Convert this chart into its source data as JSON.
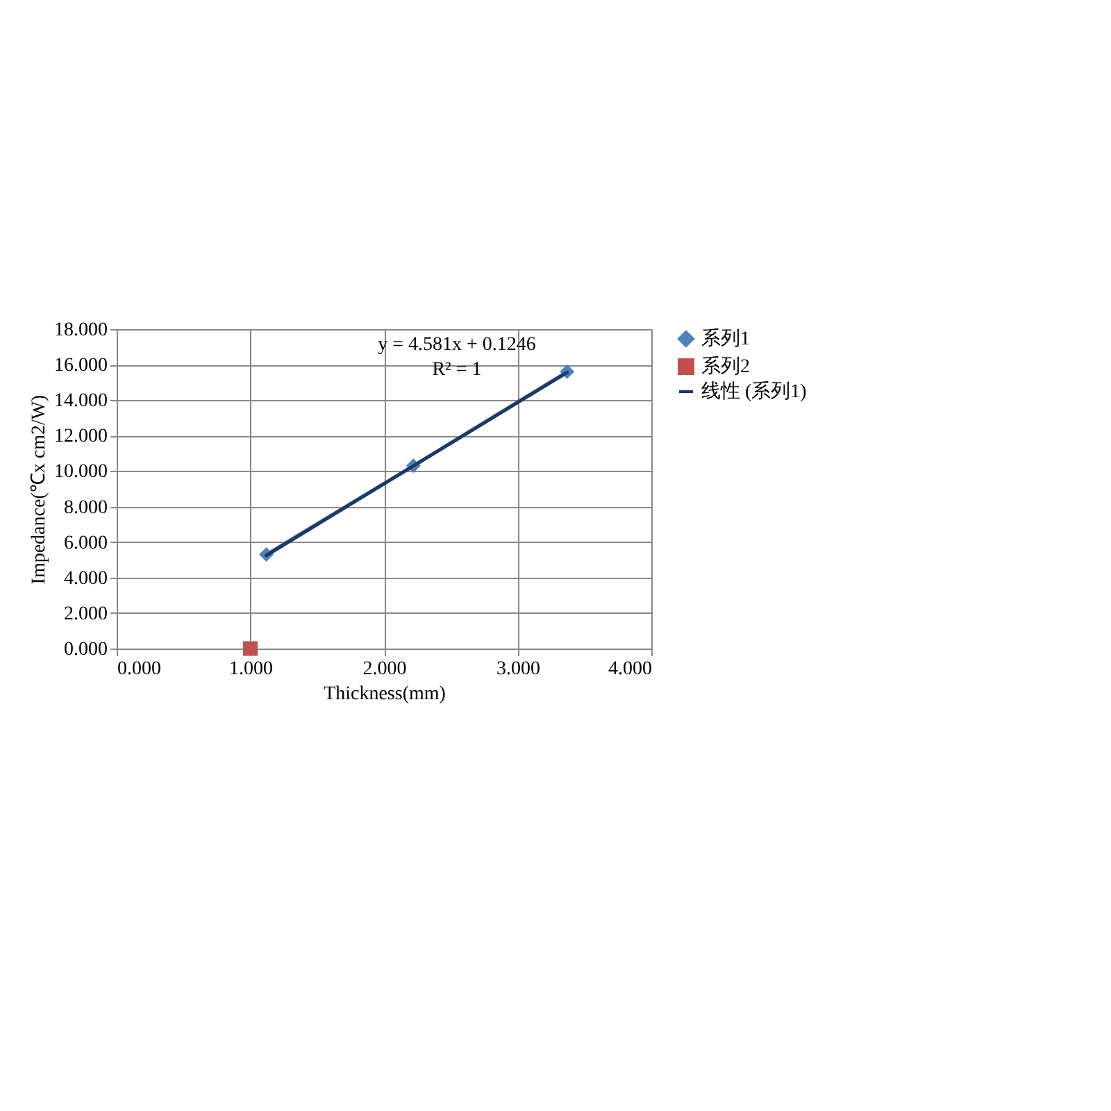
{
  "chart_data": {
    "type": "line",
    "xlabel": "Thickness(mm)",
    "ylabel": "Impedance(℃x cm2/W)",
    "xlim": [
      0,
      4
    ],
    "xticks": [
      {
        "value": 0,
        "label": "0.000"
      },
      {
        "value": 1,
        "label": "1.000"
      },
      {
        "value": 2,
        "label": "2.000"
      },
      {
        "value": 3,
        "label": "3.000"
      },
      {
        "value": 4,
        "label": "4.000"
      }
    ],
    "ylim": [
      0,
      18
    ],
    "yticks": [
      {
        "value": 0,
        "label": "0.000"
      },
      {
        "value": 2,
        "label": "2.000"
      },
      {
        "value": 4,
        "label": "4.000"
      },
      {
        "value": 6,
        "label": "6.000"
      },
      {
        "value": 8,
        "label": "8.000"
      },
      {
        "value": 10,
        "label": "10.000"
      },
      {
        "value": 12,
        "label": "12.000"
      },
      {
        "value": 14,
        "label": "14.000"
      },
      {
        "value": 16,
        "label": "16.000"
      },
      {
        "value": 18,
        "label": "18.000"
      }
    ],
    "grid": true,
    "legend": "right",
    "series": [
      {
        "name": "系列1",
        "marker": "diamond",
        "color": "#4f81bd",
        "x": [
          1.12,
          2.22,
          3.37
        ],
        "values": [
          5.3,
          10.3,
          15.6
        ]
      },
      {
        "name": "系列2",
        "type": "scatter",
        "marker": "square",
        "color": "#c0504d",
        "x": [
          1.0
        ],
        "values": [
          0
        ]
      },
      {
        "name": "线性 (系列1)",
        "marker": "none",
        "color": "#1f3864",
        "x": [
          1.12,
          3.37
        ],
        "values": [
          5.25,
          15.56
        ]
      }
    ],
    "annotations": [
      "y = 4.581x + 0.1246",
      "R² = 1"
    ]
  }
}
